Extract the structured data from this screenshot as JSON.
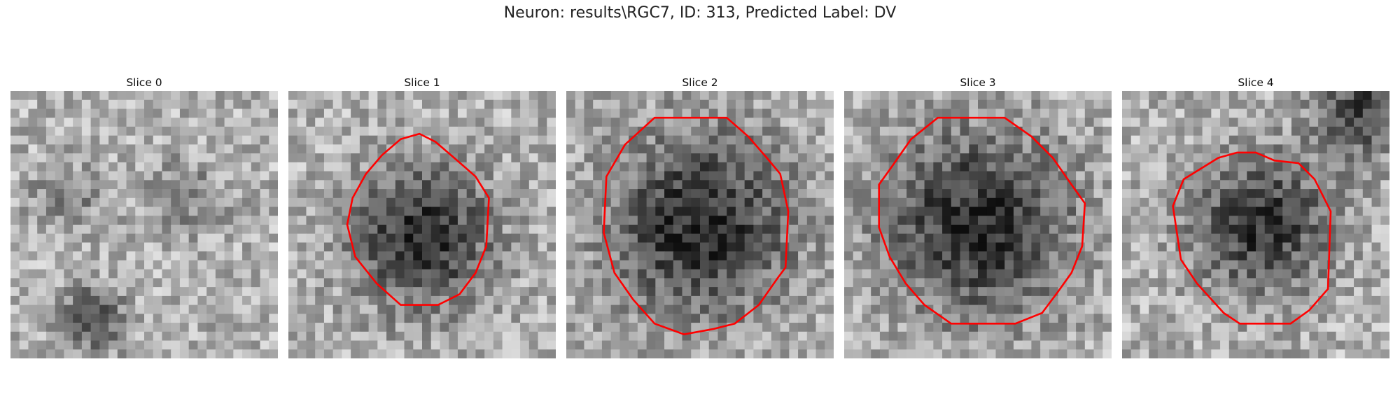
{
  "figure": {
    "title": "Neuron: results\\RGC7, ID: 313, Predicted Label: DV"
  },
  "panels": [
    {
      "title": "Slice 0",
      "contour": null,
      "seed": 11,
      "dark_regions": "diffuse"
    },
    {
      "title": "Slice 1",
      "contour": [
        [
          0.42,
          0.18
        ],
        [
          0.49,
          0.16
        ],
        [
          0.55,
          0.19
        ],
        [
          0.62,
          0.25
        ],
        [
          0.7,
          0.32
        ],
        [
          0.75,
          0.4
        ],
        [
          0.74,
          0.58
        ],
        [
          0.7,
          0.68
        ],
        [
          0.64,
          0.76
        ],
        [
          0.56,
          0.8
        ],
        [
          0.42,
          0.8
        ],
        [
          0.33,
          0.72
        ],
        [
          0.25,
          0.62
        ],
        [
          0.22,
          0.5
        ],
        [
          0.24,
          0.4
        ],
        [
          0.29,
          0.31
        ],
        [
          0.35,
          0.24
        ]
      ],
      "seed": 23,
      "dark_regions": "center-lower"
    },
    {
      "title": "Slice 2",
      "contour": [
        [
          0.33,
          0.1
        ],
        [
          0.6,
          0.1
        ],
        [
          0.68,
          0.17
        ],
        [
          0.75,
          0.25
        ],
        [
          0.8,
          0.31
        ],
        [
          0.83,
          0.45
        ],
        [
          0.82,
          0.66
        ],
        [
          0.79,
          0.7
        ],
        [
          0.72,
          0.8
        ],
        [
          0.63,
          0.87
        ],
        [
          0.55,
          0.89
        ],
        [
          0.44,
          0.91
        ],
        [
          0.33,
          0.87
        ],
        [
          0.25,
          0.78
        ],
        [
          0.18,
          0.68
        ],
        [
          0.14,
          0.53
        ],
        [
          0.15,
          0.32
        ],
        [
          0.22,
          0.2
        ]
      ],
      "seed": 37,
      "dark_regions": "center"
    },
    {
      "title": "Slice 3",
      "contour": [
        [
          0.35,
          0.1
        ],
        [
          0.6,
          0.1
        ],
        [
          0.7,
          0.17
        ],
        [
          0.78,
          0.25
        ],
        [
          0.85,
          0.35
        ],
        [
          0.9,
          0.42
        ],
        [
          0.89,
          0.58
        ],
        [
          0.85,
          0.68
        ],
        [
          0.8,
          0.75
        ],
        [
          0.74,
          0.83
        ],
        [
          0.64,
          0.87
        ],
        [
          0.4,
          0.87
        ],
        [
          0.3,
          0.8
        ],
        [
          0.23,
          0.72
        ],
        [
          0.17,
          0.62
        ],
        [
          0.13,
          0.51
        ],
        [
          0.13,
          0.35
        ],
        [
          0.18,
          0.28
        ],
        [
          0.25,
          0.18
        ]
      ],
      "seed": 51,
      "dark_regions": "center"
    },
    {
      "title": "Slice 4",
      "contour": [
        [
          0.36,
          0.25
        ],
        [
          0.43,
          0.23
        ],
        [
          0.5,
          0.23
        ],
        [
          0.57,
          0.26
        ],
        [
          0.66,
          0.27
        ],
        [
          0.72,
          0.33
        ],
        [
          0.78,
          0.45
        ],
        [
          0.77,
          0.74
        ],
        [
          0.7,
          0.82
        ],
        [
          0.63,
          0.87
        ],
        [
          0.44,
          0.87
        ],
        [
          0.38,
          0.83
        ],
        [
          0.28,
          0.72
        ],
        [
          0.22,
          0.63
        ],
        [
          0.19,
          0.43
        ],
        [
          0.23,
          0.33
        ]
      ],
      "seed": 67,
      "dark_regions": "center-upper-right"
    }
  ],
  "colors": {
    "contour": "#ff0000",
    "title_text": "#222222"
  }
}
